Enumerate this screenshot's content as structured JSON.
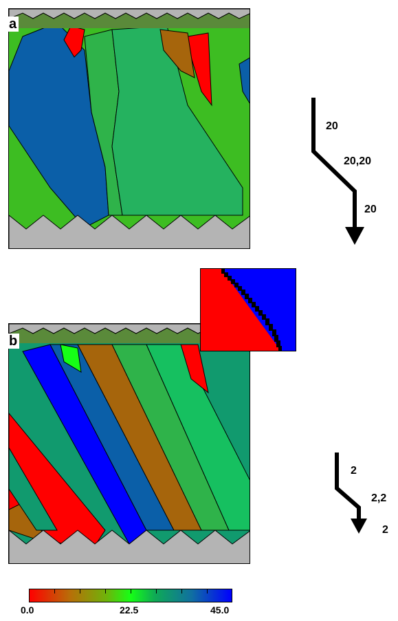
{
  "panels": {
    "a": {
      "label": "a"
    },
    "b": {
      "label": "b"
    }
  },
  "arrows": {
    "a": {
      "segment_1": "20",
      "segment_2": "20,20",
      "segment_3": "20"
    },
    "b": {
      "segment_1": "2",
      "segment_2": "2,2",
      "segment_3": "2"
    }
  },
  "colorbar": {
    "min_label": "0.0",
    "mid_label": "22.5",
    "max_label": "45.0",
    "colors": [
      "#ff0000",
      "#b86e08",
      "#6fb30a",
      "#16ff16",
      "#0faa55",
      "#1070a0",
      "#0000ff"
    ]
  },
  "colors": {
    "mold": "#b4b4b4",
    "red": "#ff0000",
    "blue": "#0b5fa8",
    "green": "#3dbd22",
    "teal": "#119a6e",
    "brown": "#a6650c",
    "pure_blue": "#0000ff"
  }
}
